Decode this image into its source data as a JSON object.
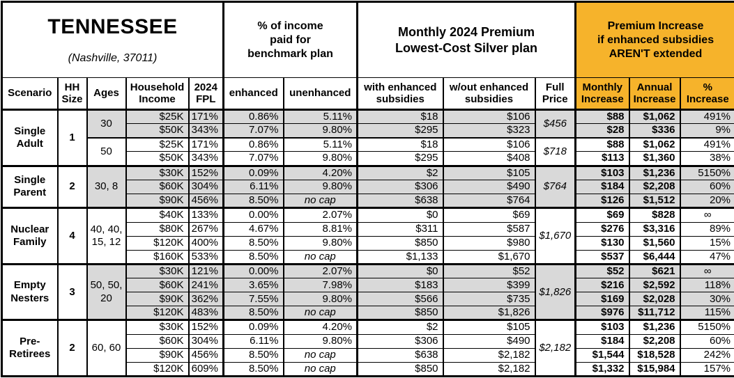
{
  "title": {
    "state": "TENNESSEE",
    "location": "(Nashville, 37011)"
  },
  "sections": {
    "income_pct": "% of income\npaid for\nbenchmark plan",
    "premium": "Monthly 2024 Premium\nLowest-Cost Silver plan",
    "increase": "Premium Increase\nif enhanced subsidies\nAREN'T extended"
  },
  "columns": {
    "scenario": "Scenario",
    "hh_size": "HH\nSize",
    "ages": "Ages",
    "income": "Household\nIncome",
    "fpl": "2024\nFPL",
    "enhanced": "enhanced",
    "unenhanced": "unenhanced",
    "with_sub": "with enhanced\nsubsidies",
    "wout_sub": "w/out enhanced\nsubsidies",
    "full_price": "Full\nPrice",
    "monthly": "Monthly\nIncrease",
    "annual": "Annual\nIncrease",
    "pct": "%\nIncrease"
  },
  "colors": {
    "accent_orange": "#F6B32B",
    "row_shade_gray": "#D9D9D9"
  },
  "groups": [
    {
      "scenario": "Single\nAdult",
      "hh_size": "1",
      "sub_groups": [
        {
          "ages": "30",
          "full_price": "$456",
          "shaded": true,
          "rows": [
            {
              "income": "$25K",
              "fpl": "171%",
              "enhanced": "0.86%",
              "unenhanced": "5.11%",
              "with_sub": "$18",
              "wout_sub": "$106",
              "monthly": "$88",
              "annual": "$1,062",
              "pct": "491%"
            },
            {
              "income": "$50K",
              "fpl": "343%",
              "enhanced": "7.07%",
              "unenhanced": "9.80%",
              "with_sub": "$295",
              "wout_sub": "$323",
              "monthly": "$28",
              "annual": "$336",
              "pct": "9%"
            }
          ]
        },
        {
          "ages": "50",
          "full_price": "$718",
          "shaded": false,
          "rows": [
            {
              "income": "$25K",
              "fpl": "171%",
              "enhanced": "0.86%",
              "unenhanced": "5.11%",
              "with_sub": "$18",
              "wout_sub": "$106",
              "monthly": "$88",
              "annual": "$1,062",
              "pct": "491%"
            },
            {
              "income": "$50K",
              "fpl": "343%",
              "enhanced": "7.07%",
              "unenhanced": "9.80%",
              "with_sub": "$295",
              "wout_sub": "$408",
              "monthly": "$113",
              "annual": "$1,360",
              "pct": "38%"
            }
          ]
        }
      ]
    },
    {
      "scenario": "Single\nParent",
      "hh_size": "2",
      "sub_groups": [
        {
          "ages": "30, 8",
          "full_price": "$764",
          "shaded": true,
          "rows": [
            {
              "income": "$30K",
              "fpl": "152%",
              "enhanced": "0.09%",
              "unenhanced": "4.20%",
              "with_sub": "$2",
              "wout_sub": "$105",
              "monthly": "$103",
              "annual": "$1,236",
              "pct": "5150%"
            },
            {
              "income": "$60K",
              "fpl": "304%",
              "enhanced": "6.11%",
              "unenhanced": "9.80%",
              "with_sub": "$306",
              "wout_sub": "$490",
              "monthly": "$184",
              "annual": "$2,208",
              "pct": "60%"
            },
            {
              "income": "$90K",
              "fpl": "456%",
              "enhanced": "8.50%",
              "unenhanced": "no cap",
              "with_sub": "$638",
              "wout_sub": "$764",
              "monthly": "$126",
              "annual": "$1,512",
              "pct": "20%"
            }
          ]
        }
      ]
    },
    {
      "scenario": "Nuclear\nFamily",
      "hh_size": "4",
      "sub_groups": [
        {
          "ages": "40, 40,\n15, 12",
          "full_price": "$1,670",
          "shaded": false,
          "rows": [
            {
              "income": "$40K",
              "fpl": "133%",
              "enhanced": "0.00%",
              "unenhanced": "2.07%",
              "with_sub": "$0",
              "wout_sub": "$69",
              "monthly": "$69",
              "annual": "$828",
              "pct": "∞"
            },
            {
              "income": "$80K",
              "fpl": "267%",
              "enhanced": "4.67%",
              "unenhanced": "8.81%",
              "with_sub": "$311",
              "wout_sub": "$587",
              "monthly": "$276",
              "annual": "$3,316",
              "pct": "89%"
            },
            {
              "income": "$120K",
              "fpl": "400%",
              "enhanced": "8.50%",
              "unenhanced": "9.80%",
              "with_sub": "$850",
              "wout_sub": "$980",
              "monthly": "$130",
              "annual": "$1,560",
              "pct": "15%"
            },
            {
              "income": "$160K",
              "fpl": "533%",
              "enhanced": "8.50%",
              "unenhanced": "no cap",
              "with_sub": "$1,133",
              "wout_sub": "$1,670",
              "monthly": "$537",
              "annual": "$6,444",
              "pct": "47%"
            }
          ]
        }
      ]
    },
    {
      "scenario": "Empty\nNesters",
      "hh_size": "3",
      "sub_groups": [
        {
          "ages": "50, 50,\n20",
          "full_price": "$1,826",
          "shaded": true,
          "rows": [
            {
              "income": "$30K",
              "fpl": "121%",
              "enhanced": "0.00%",
              "unenhanced": "2.07%",
              "with_sub": "$0",
              "wout_sub": "$52",
              "monthly": "$52",
              "annual": "$621",
              "pct": "∞"
            },
            {
              "income": "$60K",
              "fpl": "241%",
              "enhanced": "3.65%",
              "unenhanced": "7.98%",
              "with_sub": "$183",
              "wout_sub": "$399",
              "monthly": "$216",
              "annual": "$2,592",
              "pct": "118%"
            },
            {
              "income": "$90K",
              "fpl": "362%",
              "enhanced": "7.55%",
              "unenhanced": "9.80%",
              "with_sub": "$566",
              "wout_sub": "$735",
              "monthly": "$169",
              "annual": "$2,028",
              "pct": "30%"
            },
            {
              "income": "$120K",
              "fpl": "483%",
              "enhanced": "8.50%",
              "unenhanced": "no cap",
              "with_sub": "$850",
              "wout_sub": "$1,826",
              "monthly": "$976",
              "annual": "$11,712",
              "pct": "115%"
            }
          ]
        }
      ]
    },
    {
      "scenario": "Pre-\nRetirees",
      "hh_size": "2",
      "sub_groups": [
        {
          "ages": "60, 60",
          "full_price": "$2,182",
          "shaded": false,
          "rows": [
            {
              "income": "$30K",
              "fpl": "152%",
              "enhanced": "0.09%",
              "unenhanced": "4.20%",
              "with_sub": "$2",
              "wout_sub": "$105",
              "monthly": "$103",
              "annual": "$1,236",
              "pct": "5150%"
            },
            {
              "income": "$60K",
              "fpl": "304%",
              "enhanced": "6.11%",
              "unenhanced": "9.80%",
              "with_sub": "$306",
              "wout_sub": "$490",
              "monthly": "$184",
              "annual": "$2,208",
              "pct": "60%"
            },
            {
              "income": "$90K",
              "fpl": "456%",
              "enhanced": "8.50%",
              "unenhanced": "no cap",
              "with_sub": "$638",
              "wout_sub": "$2,182",
              "monthly": "$1,544",
              "annual": "$18,528",
              "pct": "242%"
            },
            {
              "income": "$120K",
              "fpl": "609%",
              "enhanced": "8.50%",
              "unenhanced": "no cap",
              "with_sub": "$850",
              "wout_sub": "$2,182",
              "monthly": "$1,332",
              "annual": "$15,984",
              "pct": "157%"
            }
          ]
        }
      ]
    }
  ]
}
